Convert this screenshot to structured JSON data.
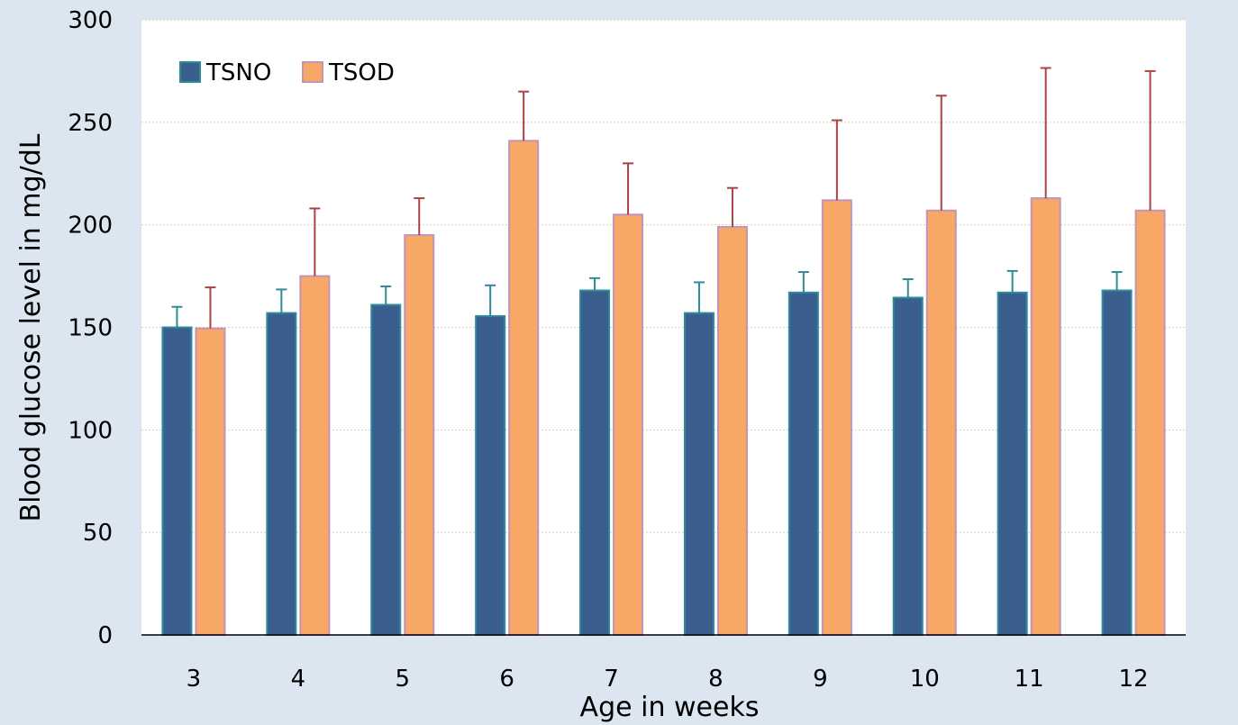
{
  "chart_data": {
    "type": "bar",
    "title": "",
    "xlabel": "Age in weeks",
    "ylabel": "Blood glucose level in mg/dL",
    "ylim": [
      0,
      300
    ],
    "yticks": [
      0,
      50,
      100,
      150,
      200,
      250,
      300
    ],
    "grid": true,
    "legend_position": "top-left",
    "categories": [
      "3",
      "4",
      "5",
      "6",
      "7",
      "8",
      "9",
      "10",
      "11",
      "12"
    ],
    "series": [
      {
        "name": "TSNO",
        "color": "#3a5f8f",
        "edge_color": "#2e8b9a",
        "error_color": "#2e8b9a",
        "values": [
          150,
          157,
          161,
          155.5,
          168,
          157,
          167,
          164.5,
          167,
          168
        ],
        "errors": [
          10,
          11.5,
          9,
          15,
          6,
          15,
          10,
          9,
          10.5,
          9
        ]
      },
      {
        "name": "TSOD",
        "color": "#f7a866",
        "edge_color": "#c493b8",
        "error_color": "#a94442",
        "values": [
          149.5,
          175,
          195,
          241,
          205,
          199,
          212,
          207,
          213,
          207
        ],
        "errors": [
          20,
          33,
          18,
          24,
          25,
          19,
          39,
          56,
          63.5,
          68
        ]
      }
    ]
  }
}
